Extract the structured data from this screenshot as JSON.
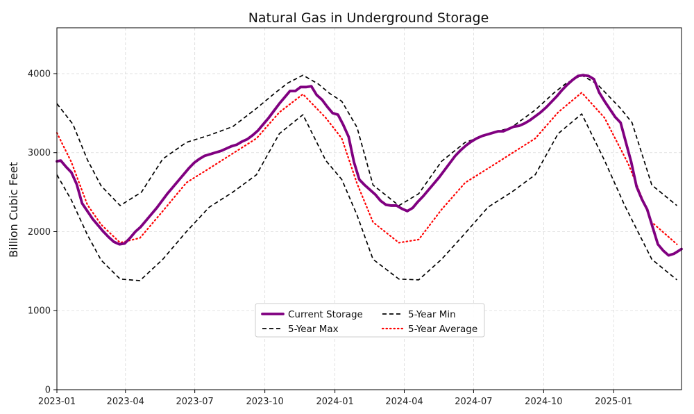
{
  "chart_data": {
    "type": "line",
    "title": "Natural Gas in Underground Storage",
    "xlabel": "",
    "ylabel": "Billion Cubic Feet",
    "xlim": [
      "2023-01-01",
      "2025-03-31"
    ],
    "ylim": [
      0,
      4580
    ],
    "grid": true,
    "legend_placement": "lower-center",
    "x_ticks": [
      "2023-01",
      "2023-04",
      "2023-07",
      "2023-10",
      "2024-01",
      "2024-04",
      "2024-07",
      "2024-10",
      "2025-01"
    ],
    "y_ticks": [
      0,
      1000,
      2000,
      3000,
      4000
    ],
    "series": [
      {
        "name": "Current Storage",
        "color": "#800080",
        "style": "solid",
        "points": [
          [
            "2023-01-01",
            2890
          ],
          [
            "2023-01-06",
            2900
          ],
          [
            "2023-01-13",
            2820
          ],
          [
            "2023-01-20",
            2750
          ],
          [
            "2023-01-27",
            2600
          ],
          [
            "2023-02-03",
            2360
          ],
          [
            "2023-02-10",
            2260
          ],
          [
            "2023-02-17",
            2160
          ],
          [
            "2023-02-24",
            2080
          ],
          [
            "2023-03-03",
            2000
          ],
          [
            "2023-03-10",
            1930
          ],
          [
            "2023-03-17",
            1870
          ],
          [
            "2023-03-24",
            1840
          ],
          [
            "2023-03-31",
            1850
          ],
          [
            "2023-04-07",
            1920
          ],
          [
            "2023-04-14",
            2000
          ],
          [
            "2023-04-21",
            2060
          ],
          [
            "2023-04-28",
            2140
          ],
          [
            "2023-05-05",
            2220
          ],
          [
            "2023-05-12",
            2300
          ],
          [
            "2023-05-19",
            2390
          ],
          [
            "2023-05-26",
            2480
          ],
          [
            "2023-06-02",
            2560
          ],
          [
            "2023-06-09",
            2640
          ],
          [
            "2023-06-16",
            2720
          ],
          [
            "2023-06-23",
            2800
          ],
          [
            "2023-06-30",
            2870
          ],
          [
            "2023-07-07",
            2920
          ],
          [
            "2023-07-14",
            2960
          ],
          [
            "2023-07-21",
            2980
          ],
          [
            "2023-07-28",
            3000
          ],
          [
            "2023-08-04",
            3020
          ],
          [
            "2023-08-11",
            3050
          ],
          [
            "2023-08-18",
            3080
          ],
          [
            "2023-08-25",
            3100
          ],
          [
            "2023-09-01",
            3140
          ],
          [
            "2023-09-08",
            3170
          ],
          [
            "2023-09-15",
            3220
          ],
          [
            "2023-09-22",
            3280
          ],
          [
            "2023-09-29",
            3360
          ],
          [
            "2023-10-06",
            3440
          ],
          [
            "2023-10-13",
            3530
          ],
          [
            "2023-10-20",
            3620
          ],
          [
            "2023-10-27",
            3700
          ],
          [
            "2023-11-03",
            3780
          ],
          [
            "2023-11-10",
            3780
          ],
          [
            "2023-11-17",
            3830
          ],
          [
            "2023-11-24",
            3830
          ],
          [
            "2023-12-01",
            3840
          ],
          [
            "2023-12-08",
            3730
          ],
          [
            "2023-12-15",
            3670
          ],
          [
            "2023-12-22",
            3580
          ],
          [
            "2023-12-29",
            3500
          ],
          [
            "2024-01-05",
            3480
          ],
          [
            "2024-01-12",
            3350
          ],
          [
            "2024-01-19",
            3200
          ],
          [
            "2024-01-26",
            2880
          ],
          [
            "2024-02-02",
            2660
          ],
          [
            "2024-02-09",
            2590
          ],
          [
            "2024-02-16",
            2530
          ],
          [
            "2024-02-23",
            2470
          ],
          [
            "2024-03-01",
            2390
          ],
          [
            "2024-03-08",
            2340
          ],
          [
            "2024-03-15",
            2330
          ],
          [
            "2024-03-22",
            2330
          ],
          [
            "2024-03-29",
            2290
          ],
          [
            "2024-04-05",
            2260
          ],
          [
            "2024-04-12",
            2300
          ],
          [
            "2024-04-19",
            2380
          ],
          [
            "2024-04-26",
            2450
          ],
          [
            "2024-05-03",
            2530
          ],
          [
            "2024-05-10",
            2610
          ],
          [
            "2024-05-17",
            2690
          ],
          [
            "2024-05-24",
            2780
          ],
          [
            "2024-05-31",
            2870
          ],
          [
            "2024-06-07",
            2960
          ],
          [
            "2024-06-14",
            3030
          ],
          [
            "2024-06-21",
            3090
          ],
          [
            "2024-06-28",
            3140
          ],
          [
            "2024-07-05",
            3180
          ],
          [
            "2024-07-12",
            3210
          ],
          [
            "2024-07-19",
            3230
          ],
          [
            "2024-07-26",
            3250
          ],
          [
            "2024-08-02",
            3270
          ],
          [
            "2024-08-09",
            3270
          ],
          [
            "2024-08-16",
            3300
          ],
          [
            "2024-08-23",
            3330
          ],
          [
            "2024-08-30",
            3340
          ],
          [
            "2024-09-06",
            3370
          ],
          [
            "2024-09-13",
            3410
          ],
          [
            "2024-09-20",
            3460
          ],
          [
            "2024-09-27",
            3510
          ],
          [
            "2024-10-04",
            3570
          ],
          [
            "2024-10-11",
            3640
          ],
          [
            "2024-10-18",
            3710
          ],
          [
            "2024-10-25",
            3790
          ],
          [
            "2024-11-01",
            3860
          ],
          [
            "2024-11-08",
            3920
          ],
          [
            "2024-11-15",
            3970
          ],
          [
            "2024-11-22",
            3980
          ],
          [
            "2024-11-29",
            3970
          ],
          [
            "2024-12-06",
            3930
          ],
          [
            "2024-12-13",
            3760
          ],
          [
            "2024-12-20",
            3650
          ],
          [
            "2024-12-27",
            3550
          ],
          [
            "2025-01-03",
            3450
          ],
          [
            "2025-01-10",
            3380
          ],
          [
            "2025-01-17",
            3130
          ],
          [
            "2025-01-24",
            2880
          ],
          [
            "2025-01-31",
            2570
          ],
          [
            "2025-02-07",
            2410
          ],
          [
            "2025-02-14",
            2280
          ],
          [
            "2025-02-21",
            2060
          ],
          [
            "2025-02-28",
            1840
          ],
          [
            "2025-03-07",
            1760
          ],
          [
            "2025-03-14",
            1700
          ],
          [
            "2025-03-21",
            1720
          ],
          [
            "2025-03-31",
            1780
          ]
        ]
      },
      {
        "name": "5-Year Max",
        "color": "#000000",
        "style": "dashed",
        "points": [
          [
            "2023-01-01",
            3620
          ],
          [
            "2023-01-22",
            3360
          ],
          [
            "2023-02-10",
            2910
          ],
          [
            "2023-02-28",
            2580
          ],
          [
            "2023-03-25",
            2330
          ],
          [
            "2023-04-22",
            2500
          ],
          [
            "2023-05-20",
            2920
          ],
          [
            "2023-06-20",
            3130
          ],
          [
            "2023-07-20",
            3220
          ],
          [
            "2023-08-20",
            3330
          ],
          [
            "2023-09-20",
            3560
          ],
          [
            "2023-10-15",
            3760
          ],
          [
            "2023-10-31",
            3880
          ],
          [
            "2023-11-20",
            3980
          ],
          [
            "2023-12-10",
            3870
          ],
          [
            "2023-12-25",
            3750
          ],
          [
            "2024-01-10",
            3650
          ],
          [
            "2024-01-30",
            3320
          ],
          [
            "2024-02-20",
            2590
          ],
          [
            "2024-03-25",
            2330
          ],
          [
            "2024-04-20",
            2480
          ],
          [
            "2024-05-20",
            2890
          ],
          [
            "2024-06-20",
            3130
          ],
          [
            "2024-07-20",
            3230
          ],
          [
            "2024-08-20",
            3320
          ],
          [
            "2024-09-20",
            3540
          ],
          [
            "2024-10-15",
            3760
          ],
          [
            "2024-10-31",
            3880
          ],
          [
            "2024-11-20",
            3980
          ],
          [
            "2024-12-10",
            3870
          ],
          [
            "2024-12-25",
            3720
          ],
          [
            "2025-01-10",
            3560
          ],
          [
            "2025-01-25",
            3380
          ],
          [
            "2025-02-20",
            2590
          ],
          [
            "2025-03-25",
            2330
          ]
        ]
      },
      {
        "name": "5-Year Min",
        "color": "#000000",
        "style": "dashed",
        "points": [
          [
            "2023-01-01",
            2720
          ],
          [
            "2023-01-20",
            2400
          ],
          [
            "2023-02-10",
            1960
          ],
          [
            "2023-02-28",
            1640
          ],
          [
            "2023-03-25",
            1400
          ],
          [
            "2023-04-20",
            1380
          ],
          [
            "2023-05-20",
            1650
          ],
          [
            "2023-06-20",
            2000
          ],
          [
            "2023-07-20",
            2310
          ],
          [
            "2023-08-20",
            2500
          ],
          [
            "2023-09-20",
            2720
          ],
          [
            "2023-10-20",
            3240
          ],
          [
            "2023-11-20",
            3480
          ],
          [
            "2023-12-20",
            2900
          ],
          [
            "2024-01-10",
            2660
          ],
          [
            "2024-01-30",
            2210
          ],
          [
            "2024-02-20",
            1650
          ],
          [
            "2024-03-25",
            1400
          ],
          [
            "2024-04-20",
            1390
          ],
          [
            "2024-05-20",
            1650
          ],
          [
            "2024-06-20",
            1980
          ],
          [
            "2024-07-20",
            2310
          ],
          [
            "2024-08-20",
            2500
          ],
          [
            "2024-09-20",
            2720
          ],
          [
            "2024-10-20",
            3240
          ],
          [
            "2024-11-20",
            3490
          ],
          [
            "2024-12-20",
            2900
          ],
          [
            "2025-01-15",
            2340
          ],
          [
            "2025-02-20",
            1650
          ],
          [
            "2025-03-25",
            1390
          ]
        ]
      },
      {
        "name": "5-Year Average",
        "color": "#ff0000",
        "style": "dotted",
        "points": [
          [
            "2023-01-01",
            3250
          ],
          [
            "2023-01-20",
            2880
          ],
          [
            "2023-02-10",
            2340
          ],
          [
            "2023-02-28",
            2090
          ],
          [
            "2023-03-25",
            1860
          ],
          [
            "2023-04-20",
            1920
          ],
          [
            "2023-05-20",
            2260
          ],
          [
            "2023-06-20",
            2620
          ],
          [
            "2023-07-20",
            2800
          ],
          [
            "2023-08-20",
            2990
          ],
          [
            "2023-09-20",
            3180
          ],
          [
            "2023-10-20",
            3510
          ],
          [
            "2023-11-20",
            3740
          ],
          [
            "2023-12-20",
            3440
          ],
          [
            "2024-01-10",
            3180
          ],
          [
            "2024-01-30",
            2610
          ],
          [
            "2024-02-20",
            2120
          ],
          [
            "2024-03-25",
            1860
          ],
          [
            "2024-04-20",
            1900
          ],
          [
            "2024-05-20",
            2280
          ],
          [
            "2024-06-20",
            2620
          ],
          [
            "2024-07-20",
            2800
          ],
          [
            "2024-08-20",
            2990
          ],
          [
            "2024-09-20",
            3180
          ],
          [
            "2024-10-20",
            3510
          ],
          [
            "2024-11-20",
            3760
          ],
          [
            "2024-12-20",
            3440
          ],
          [
            "2025-01-20",
            2860
          ],
          [
            "2025-02-20",
            2120
          ],
          [
            "2025-03-25",
            1840
          ]
        ]
      }
    ]
  }
}
